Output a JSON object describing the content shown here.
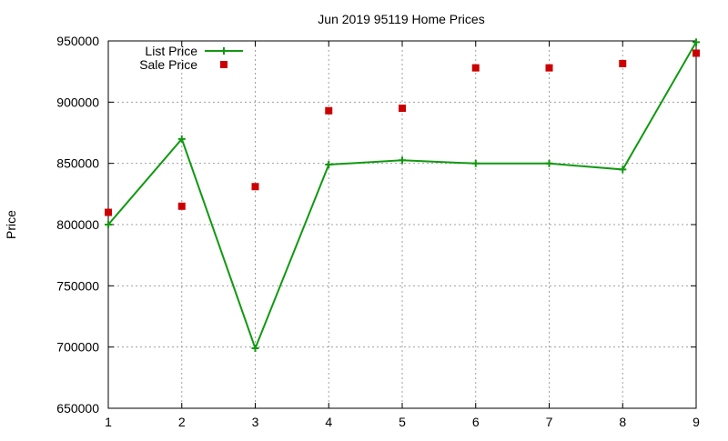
{
  "chart_data": {
    "type": "line",
    "title": "Jun 2019 95119 Home Prices",
    "xlabel": "",
    "ylabel": "Price",
    "xlim": [
      1,
      9
    ],
    "ylim": [
      650000,
      950000
    ],
    "x_ticks": [
      "1",
      "2",
      "3",
      "4",
      "5",
      "6",
      "7",
      "8",
      "9"
    ],
    "y_ticks": [
      "650000",
      "700000",
      "750000",
      "800000",
      "850000",
      "900000",
      "950000"
    ],
    "grid": true,
    "legend_position": "top-left",
    "x": [
      1,
      2,
      3,
      4,
      5,
      6,
      7,
      8,
      9
    ],
    "series": [
      {
        "name": "List Price",
        "style": "line-with-plus-markers",
        "color": "#119911",
        "values": [
          800000,
          869900,
          699000,
          849000,
          852500,
          849900,
          849900,
          845000,
          949000
        ]
      },
      {
        "name": "Sale Price",
        "style": "square-points",
        "color": "#cc0000",
        "values": [
          810000,
          815000,
          831000,
          893000,
          895000,
          928000,
          928000,
          931500,
          940000
        ]
      }
    ]
  }
}
